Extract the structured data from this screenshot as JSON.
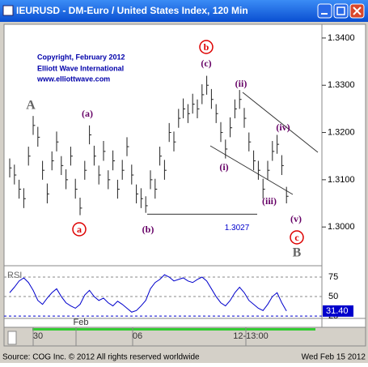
{
  "window_title": "IEURUSD - DM-Euro / United States Index, 120 Min",
  "chart_data": {
    "type": "ohlc",
    "copyright": [
      "Copyright, February 2012",
      "Elliott Wave International",
      "www.elliottwave.com"
    ],
    "high": [
      1.3145,
      1.3132,
      1.31,
      1.3082,
      1.317,
      1.3235,
      1.3212,
      1.314,
      1.3092,
      1.316,
      1.3202,
      1.315,
      1.3122,
      1.317,
      1.3102,
      1.3062,
      1.314,
      1.3215,
      1.3172,
      1.313,
      1.3182,
      1.312,
      1.3162,
      1.31,
      1.3142,
      1.319,
      1.3132,
      1.309,
      1.3082,
      1.3065,
      1.312,
      1.3102,
      1.317,
      1.3142,
      1.322,
      1.3202,
      1.325,
      1.3272,
      1.326,
      1.3282,
      1.327,
      1.3302,
      1.332,
      1.3292,
      1.326,
      1.3222,
      1.3185,
      1.3232,
      1.327,
      1.329,
      1.3252,
      1.32,
      1.3162,
      1.314,
      1.3102,
      1.314,
      1.3182,
      1.3195,
      1.3152,
      1.3085
    ],
    "low": [
      1.3105,
      1.309,
      1.306,
      1.304,
      1.313,
      1.3195,
      1.317,
      1.31,
      1.305,
      1.312,
      1.316,
      1.311,
      1.308,
      1.313,
      1.306,
      1.3025,
      1.31,
      1.3175,
      1.313,
      1.309,
      1.314,
      1.308,
      1.312,
      1.306,
      1.31,
      1.315,
      1.309,
      1.305,
      1.304,
      1.303,
      1.308,
      1.306,
      1.313,
      1.31,
      1.318,
      1.316,
      1.321,
      1.323,
      1.322,
      1.324,
      1.323,
      1.326,
      1.328,
      1.325,
      1.322,
      1.318,
      1.3145,
      1.319,
      1.323,
      1.325,
      1.321,
      1.316,
      1.312,
      1.31,
      1.306,
      1.31,
      1.314,
      1.3155,
      1.311,
      1.305
    ],
    "close": [
      1.3125,
      1.311,
      1.308,
      1.306,
      1.315,
      1.3215,
      1.319,
      1.312,
      1.307,
      1.314,
      1.318,
      1.313,
      1.31,
      1.315,
      1.308,
      1.304,
      1.312,
      1.3195,
      1.315,
      1.311,
      1.316,
      1.31,
      1.314,
      1.308,
      1.312,
      1.317,
      1.311,
      1.307,
      1.306,
      1.3045,
      1.31,
      1.308,
      1.315,
      1.312,
      1.32,
      1.318,
      1.323,
      1.325,
      1.324,
      1.326,
      1.325,
      1.328,
      1.33,
      1.327,
      1.324,
      1.32,
      1.3165,
      1.321,
      1.325,
      1.327,
      1.323,
      1.318,
      1.314,
      1.312,
      1.308,
      1.312,
      1.316,
      1.3175,
      1.313,
      1.3065
    ],
    "ylim": [
      1.2918,
      1.3429
    ],
    "yticks": [
      {
        "value": 1.34,
        "label": "1.3400"
      },
      {
        "value": 1.33,
        "label": "1.3300"
      },
      {
        "value": 1.32,
        "label": "1.3200"
      },
      {
        "value": 1.31,
        "label": "1.3100"
      },
      {
        "value": 1.3,
        "label": "1.3000"
      }
    ],
    "level": {
      "value": 1.3027,
      "label": "1.3027"
    },
    "waves": [
      "A",
      "(a)",
      "a",
      "(b)",
      "b",
      "(c)",
      "(i)",
      "(ii)",
      "(iii)",
      "(iv)",
      "(v)",
      "c",
      "B"
    ],
    "x_labels": [
      "30",
      "Feb",
      "06",
      "12-13:00"
    ],
    "rsi": {
      "name": "RSI",
      "color": "#0000cc",
      "values": [
        55,
        62,
        70,
        74,
        68,
        58,
        45,
        40,
        48,
        55,
        60,
        50,
        42,
        38,
        35,
        40,
        52,
        58,
        50,
        45,
        48,
        42,
        38,
        44,
        40,
        35,
        30,
        32,
        38,
        45,
        60,
        68,
        72,
        78,
        75,
        70,
        72,
        74,
        70,
        68,
        72,
        75,
        70,
        60,
        50,
        42,
        38,
        45,
        55,
        62,
        55,
        45,
        40,
        35,
        32,
        40,
        50,
        55,
        42,
        31.4
      ],
      "last_label": "31.40",
      "ylim": [
        23,
        87.5
      ],
      "yticks": [
        75,
        50,
        25
      ]
    }
  },
  "footer": {
    "source": "Source: COG Inc. © 2012 All rights reserved worldwide",
    "date": "Wed Feb 15 2012"
  }
}
